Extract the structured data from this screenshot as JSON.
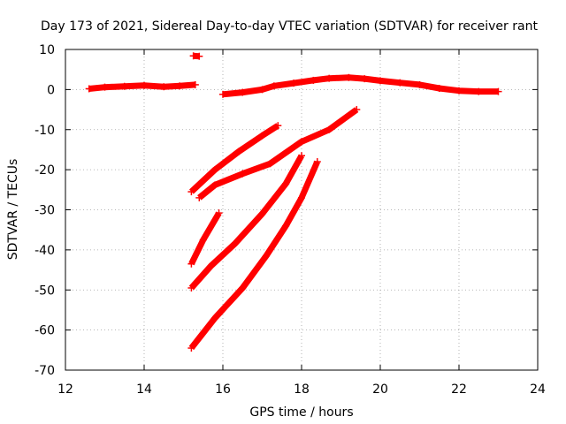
{
  "chart_data": {
    "type": "scatter",
    "title": "Day 173 of 2021, Sidereal Day-to-day VTEC variation (SDTVAR) for receiver rant",
    "xlabel": "GPS time / hours",
    "ylabel": "SDTVAR / TECUs",
    "xlim": [
      12,
      24
    ],
    "ylim": [
      -70,
      10
    ],
    "x_ticks": [
      "12",
      "14",
      "16",
      "18",
      "20",
      "22",
      "24"
    ],
    "y_ticks": [
      "10",
      "0",
      "-10",
      "-20",
      "-30",
      "-40",
      "-50",
      "-60",
      "-70"
    ],
    "grid": true,
    "legend": "none",
    "marker": "plus",
    "colors": {
      "series": "#ff0000"
    },
    "segments": [
      {
        "points": [
          [
            12.6,
            0.2
          ],
          [
            13.0,
            0.6
          ],
          [
            13.5,
            0.8
          ],
          [
            14.0,
            1.0
          ],
          [
            14.5,
            0.7
          ],
          [
            14.9,
            0.9
          ],
          [
            15.3,
            1.2
          ]
        ]
      },
      {
        "points": [
          [
            15.25,
            8.4
          ],
          [
            15.4,
            8.3
          ]
        ]
      },
      {
        "points": [
          [
            16.0,
            -1.2
          ],
          [
            16.5,
            -0.7
          ],
          [
            17.0,
            0.0
          ],
          [
            17.3,
            0.9
          ],
          [
            17.8,
            1.6
          ],
          [
            18.3,
            2.3
          ],
          [
            18.7,
            2.8
          ],
          [
            19.2,
            3.0
          ],
          [
            19.6,
            2.7
          ],
          [
            20.0,
            2.2
          ],
          [
            20.5,
            1.7
          ],
          [
            21.0,
            1.2
          ],
          [
            21.5,
            0.3
          ],
          [
            22.0,
            -0.3
          ],
          [
            22.5,
            -0.5
          ],
          [
            23.0,
            -0.5
          ]
        ]
      },
      {
        "points": [
          [
            15.2,
            -25.5
          ],
          [
            15.8,
            -20.0
          ],
          [
            16.4,
            -15.5
          ],
          [
            17.0,
            -11.5
          ],
          [
            17.4,
            -9.0
          ]
        ]
      },
      {
        "points": [
          [
            15.4,
            -27.0
          ],
          [
            15.8,
            -23.8
          ],
          [
            16.5,
            -21.0
          ],
          [
            17.2,
            -18.5
          ],
          [
            18.0,
            -13.0
          ],
          [
            18.7,
            -10.0
          ],
          [
            19.4,
            -5.0
          ]
        ]
      },
      {
        "points": [
          [
            15.2,
            -43.5
          ],
          [
            15.5,
            -37.5
          ],
          [
            15.9,
            -30.8
          ]
        ]
      },
      {
        "points": [
          [
            15.2,
            -49.5
          ],
          [
            15.7,
            -44.0
          ],
          [
            16.3,
            -38.5
          ],
          [
            17.0,
            -31.0
          ],
          [
            17.6,
            -23.5
          ],
          [
            18.0,
            -16.5
          ]
        ]
      },
      {
        "points": [
          [
            15.2,
            -64.5
          ],
          [
            15.8,
            -57.0
          ],
          [
            16.5,
            -49.5
          ],
          [
            17.1,
            -41.5
          ],
          [
            17.6,
            -34.0
          ],
          [
            18.0,
            -27.0
          ],
          [
            18.4,
            -18.0
          ]
        ]
      }
    ]
  }
}
